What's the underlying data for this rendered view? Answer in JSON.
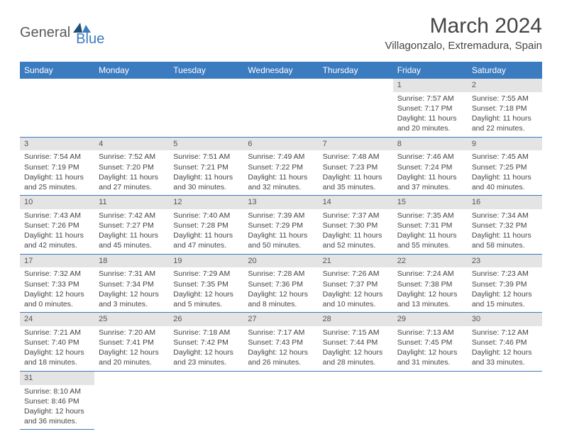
{
  "logo": {
    "part1": "General",
    "part2": "Blue"
  },
  "title": "March 2024",
  "location": "Villagonzalo, Extremadura, Spain",
  "colors": {
    "header_bg": "#3b7bbf",
    "header_fg": "#ffffff",
    "daynum_bg": "#e4e4e4",
    "row_border": "#3b7bbf",
    "text": "#444444"
  },
  "weekdays": [
    "Sunday",
    "Monday",
    "Tuesday",
    "Wednesday",
    "Thursday",
    "Friday",
    "Saturday"
  ],
  "weeks": [
    [
      null,
      null,
      null,
      null,
      null,
      {
        "n": "1",
        "sr": "Sunrise: 7:57 AM",
        "ss": "Sunset: 7:17 PM",
        "dl": "Daylight: 11 hours and 20 minutes."
      },
      {
        "n": "2",
        "sr": "Sunrise: 7:55 AM",
        "ss": "Sunset: 7:18 PM",
        "dl": "Daylight: 11 hours and 22 minutes."
      }
    ],
    [
      {
        "n": "3",
        "sr": "Sunrise: 7:54 AM",
        "ss": "Sunset: 7:19 PM",
        "dl": "Daylight: 11 hours and 25 minutes."
      },
      {
        "n": "4",
        "sr": "Sunrise: 7:52 AM",
        "ss": "Sunset: 7:20 PM",
        "dl": "Daylight: 11 hours and 27 minutes."
      },
      {
        "n": "5",
        "sr": "Sunrise: 7:51 AM",
        "ss": "Sunset: 7:21 PM",
        "dl": "Daylight: 11 hours and 30 minutes."
      },
      {
        "n": "6",
        "sr": "Sunrise: 7:49 AM",
        "ss": "Sunset: 7:22 PM",
        "dl": "Daylight: 11 hours and 32 minutes."
      },
      {
        "n": "7",
        "sr": "Sunrise: 7:48 AM",
        "ss": "Sunset: 7:23 PM",
        "dl": "Daylight: 11 hours and 35 minutes."
      },
      {
        "n": "8",
        "sr": "Sunrise: 7:46 AM",
        "ss": "Sunset: 7:24 PM",
        "dl": "Daylight: 11 hours and 37 minutes."
      },
      {
        "n": "9",
        "sr": "Sunrise: 7:45 AM",
        "ss": "Sunset: 7:25 PM",
        "dl": "Daylight: 11 hours and 40 minutes."
      }
    ],
    [
      {
        "n": "10",
        "sr": "Sunrise: 7:43 AM",
        "ss": "Sunset: 7:26 PM",
        "dl": "Daylight: 11 hours and 42 minutes."
      },
      {
        "n": "11",
        "sr": "Sunrise: 7:42 AM",
        "ss": "Sunset: 7:27 PM",
        "dl": "Daylight: 11 hours and 45 minutes."
      },
      {
        "n": "12",
        "sr": "Sunrise: 7:40 AM",
        "ss": "Sunset: 7:28 PM",
        "dl": "Daylight: 11 hours and 47 minutes."
      },
      {
        "n": "13",
        "sr": "Sunrise: 7:39 AM",
        "ss": "Sunset: 7:29 PM",
        "dl": "Daylight: 11 hours and 50 minutes."
      },
      {
        "n": "14",
        "sr": "Sunrise: 7:37 AM",
        "ss": "Sunset: 7:30 PM",
        "dl": "Daylight: 11 hours and 52 minutes."
      },
      {
        "n": "15",
        "sr": "Sunrise: 7:35 AM",
        "ss": "Sunset: 7:31 PM",
        "dl": "Daylight: 11 hours and 55 minutes."
      },
      {
        "n": "16",
        "sr": "Sunrise: 7:34 AM",
        "ss": "Sunset: 7:32 PM",
        "dl": "Daylight: 11 hours and 58 minutes."
      }
    ],
    [
      {
        "n": "17",
        "sr": "Sunrise: 7:32 AM",
        "ss": "Sunset: 7:33 PM",
        "dl": "Daylight: 12 hours and 0 minutes."
      },
      {
        "n": "18",
        "sr": "Sunrise: 7:31 AM",
        "ss": "Sunset: 7:34 PM",
        "dl": "Daylight: 12 hours and 3 minutes."
      },
      {
        "n": "19",
        "sr": "Sunrise: 7:29 AM",
        "ss": "Sunset: 7:35 PM",
        "dl": "Daylight: 12 hours and 5 minutes."
      },
      {
        "n": "20",
        "sr": "Sunrise: 7:28 AM",
        "ss": "Sunset: 7:36 PM",
        "dl": "Daylight: 12 hours and 8 minutes."
      },
      {
        "n": "21",
        "sr": "Sunrise: 7:26 AM",
        "ss": "Sunset: 7:37 PM",
        "dl": "Daylight: 12 hours and 10 minutes."
      },
      {
        "n": "22",
        "sr": "Sunrise: 7:24 AM",
        "ss": "Sunset: 7:38 PM",
        "dl": "Daylight: 12 hours and 13 minutes."
      },
      {
        "n": "23",
        "sr": "Sunrise: 7:23 AM",
        "ss": "Sunset: 7:39 PM",
        "dl": "Daylight: 12 hours and 15 minutes."
      }
    ],
    [
      {
        "n": "24",
        "sr": "Sunrise: 7:21 AM",
        "ss": "Sunset: 7:40 PM",
        "dl": "Daylight: 12 hours and 18 minutes."
      },
      {
        "n": "25",
        "sr": "Sunrise: 7:20 AM",
        "ss": "Sunset: 7:41 PM",
        "dl": "Daylight: 12 hours and 20 minutes."
      },
      {
        "n": "26",
        "sr": "Sunrise: 7:18 AM",
        "ss": "Sunset: 7:42 PM",
        "dl": "Daylight: 12 hours and 23 minutes."
      },
      {
        "n": "27",
        "sr": "Sunrise: 7:17 AM",
        "ss": "Sunset: 7:43 PM",
        "dl": "Daylight: 12 hours and 26 minutes."
      },
      {
        "n": "28",
        "sr": "Sunrise: 7:15 AM",
        "ss": "Sunset: 7:44 PM",
        "dl": "Daylight: 12 hours and 28 minutes."
      },
      {
        "n": "29",
        "sr": "Sunrise: 7:13 AM",
        "ss": "Sunset: 7:45 PM",
        "dl": "Daylight: 12 hours and 31 minutes."
      },
      {
        "n": "30",
        "sr": "Sunrise: 7:12 AM",
        "ss": "Sunset: 7:46 PM",
        "dl": "Daylight: 12 hours and 33 minutes."
      }
    ],
    [
      {
        "n": "31",
        "sr": "Sunrise: 8:10 AM",
        "ss": "Sunset: 8:46 PM",
        "dl": "Daylight: 12 hours and 36 minutes."
      },
      null,
      null,
      null,
      null,
      null,
      null
    ]
  ]
}
